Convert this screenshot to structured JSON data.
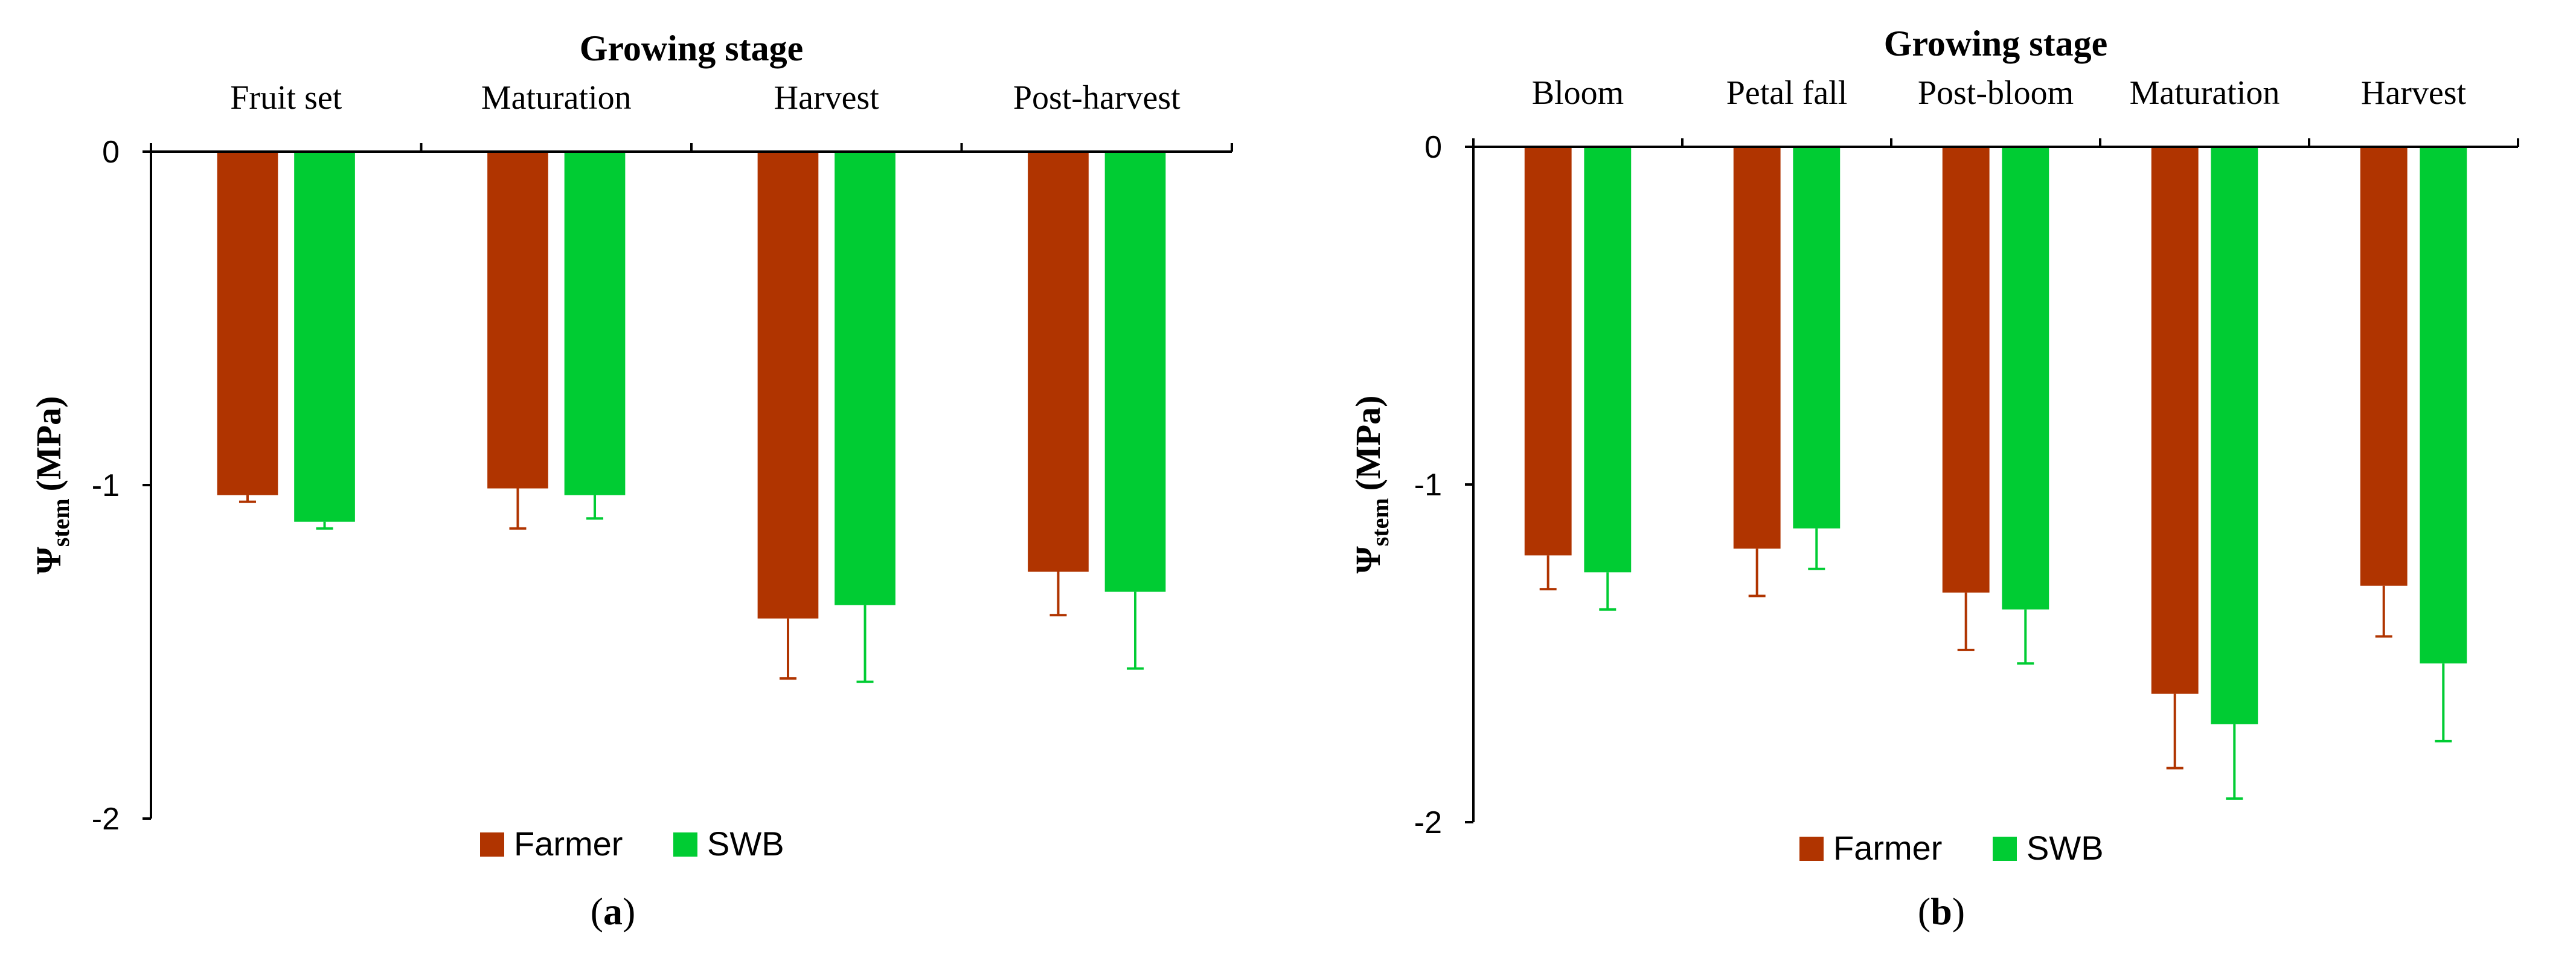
{
  "colors": {
    "farmer": "#B03400",
    "swb": "#00CC33",
    "axis": "#000000"
  },
  "chart_data": [
    {
      "type": "bar",
      "panel": "a",
      "panel_label": "a",
      "title": "Growing stage",
      "ylabel_symbol": "Ψ",
      "ylabel_sub": "stem",
      "ylabel_unit": "(MPa)",
      "ylim": [
        -2,
        0
      ],
      "yticks": [
        0,
        -1,
        -2
      ],
      "ytick_labels": [
        "0",
        "-1",
        "-2"
      ],
      "categories": [
        "Fruit set",
        "Maturation",
        "Harvest",
        "Post-harvest"
      ],
      "series": [
        {
          "name": "Farmer",
          "color_key": "farmer",
          "values": [
            -1.03,
            -1.01,
            -1.4,
            -1.26
          ],
          "errors": [
            0.02,
            0.12,
            0.18,
            0.13
          ]
        },
        {
          "name": "SWB",
          "color_key": "swb",
          "values": [
            -1.11,
            -1.03,
            -1.36,
            -1.32
          ],
          "errors": [
            0.02,
            0.07,
            0.23,
            0.23
          ]
        }
      ],
      "legend": [
        "Farmer",
        "SWB"
      ]
    },
    {
      "type": "bar",
      "panel": "b",
      "panel_label": "b",
      "title": "Growing stage",
      "ylabel_symbol": "Ψ",
      "ylabel_sub": "stem",
      "ylabel_unit": "(MPa)",
      "ylim": [
        -2,
        0
      ],
      "yticks": [
        0,
        -1,
        -2
      ],
      "ytick_labels": [
        "0",
        "-1",
        "-2"
      ],
      "categories": [
        "Bloom",
        "Petal fall",
        "Post-bloom",
        "Maturation",
        "Harvest"
      ],
      "series": [
        {
          "name": "Farmer",
          "color_key": "farmer",
          "values": [
            -1.21,
            -1.19,
            -1.32,
            -1.62,
            -1.3
          ],
          "errors": [
            0.1,
            0.14,
            0.17,
            0.22,
            0.15
          ]
        },
        {
          "name": "SWB",
          "color_key": "swb",
          "values": [
            -1.26,
            -1.13,
            -1.37,
            -1.71,
            -1.53
          ],
          "errors": [
            0.11,
            0.12,
            0.16,
            0.22,
            0.23
          ]
        }
      ],
      "legend": [
        "Farmer",
        "SWB"
      ]
    }
  ]
}
